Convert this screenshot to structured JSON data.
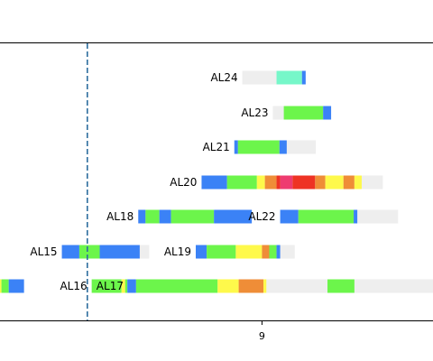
{
  "chart_data": {
    "type": "timeline",
    "title": "",
    "xlabel": "",
    "ylabel": "",
    "xlim": [
      5.4,
      11.35
    ],
    "x_ticks": [
      9
    ],
    "x_tick_labels": [
      "9"
    ],
    "reference_line": {
      "x": 6.6,
      "style": "dashed",
      "color": "#2e6e9e"
    },
    "grid": false,
    "legend": "none",
    "colors": {
      "track": "#eeeeee",
      "blue": "#3b82f6",
      "green": "#6cf54b",
      "yellow": "#fef94b",
      "orange": "#ef8d37",
      "red": "#ee3324",
      "pink": "#ee3b70",
      "teal": "#76f7c9"
    },
    "lanes": [
      {
        "label": "AL24",
        "row": 1,
        "track": [
          8.73,
          9.6
        ],
        "segments": [
          {
            "start": 9.2,
            "end": 9.55,
            "color": "teal"
          },
          {
            "start": 9.55,
            "end": 9.6,
            "color": "blue"
          }
        ]
      },
      {
        "label": "AL23",
        "row": 2,
        "track": [
          9.15,
          9.95
        ],
        "segments": [
          {
            "start": 9.3,
            "end": 9.84,
            "color": "green"
          },
          {
            "start": 9.84,
            "end": 9.95,
            "color": "blue"
          }
        ]
      },
      {
        "label": "AL21",
        "row": 3,
        "track": [
          8.62,
          9.74
        ],
        "segments": [
          {
            "start": 8.62,
            "end": 8.67,
            "color": "blue"
          },
          {
            "start": 8.67,
            "end": 9.24,
            "color": "green"
          },
          {
            "start": 9.24,
            "end": 9.34,
            "color": "blue"
          }
        ]
      },
      {
        "label": "AL20",
        "row": 4,
        "track": [
          8.17,
          10.66
        ],
        "segments": [
          {
            "start": 8.17,
            "end": 8.52,
            "color": "blue"
          },
          {
            "start": 8.52,
            "end": 8.93,
            "color": "green"
          },
          {
            "start": 8.93,
            "end": 9.04,
            "color": "yellow"
          },
          {
            "start": 9.04,
            "end": 9.2,
            "color": "orange"
          },
          {
            "start": 9.2,
            "end": 9.25,
            "color": "red"
          },
          {
            "start": 9.25,
            "end": 9.42,
            "color": "pink"
          },
          {
            "start": 9.42,
            "end": 9.73,
            "color": "red"
          },
          {
            "start": 9.73,
            "end": 9.87,
            "color": "orange"
          },
          {
            "start": 9.87,
            "end": 10.12,
            "color": "yellow"
          },
          {
            "start": 10.12,
            "end": 10.27,
            "color": "orange"
          },
          {
            "start": 10.27,
            "end": 10.37,
            "color": "yellow"
          }
        ]
      },
      {
        "label": "AL18",
        "row": 5,
        "track": [
          7.3,
          8.86
        ],
        "segments": [
          {
            "start": 7.3,
            "end": 7.4,
            "color": "blue"
          },
          {
            "start": 7.4,
            "end": 7.59,
            "color": "green"
          },
          {
            "start": 7.59,
            "end": 7.75,
            "color": "blue"
          },
          {
            "start": 7.75,
            "end": 8.34,
            "color": "green"
          },
          {
            "start": 8.34,
            "end": 8.86,
            "color": "blue"
          }
        ]
      },
      {
        "label": "AL22",
        "row": 5,
        "track": [
          9.25,
          10.87
        ],
        "segments": [
          {
            "start": 9.25,
            "end": 9.5,
            "color": "blue"
          },
          {
            "start": 9.5,
            "end": 10.26,
            "color": "green"
          },
          {
            "start": 10.26,
            "end": 10.31,
            "color": "blue"
          }
        ]
      },
      {
        "label": "AL15",
        "row": 6,
        "track": [
          6.25,
          7.45
        ],
        "segments": [
          {
            "start": 6.25,
            "end": 6.49,
            "color": "blue"
          },
          {
            "start": 6.49,
            "end": 6.77,
            "color": "green"
          },
          {
            "start": 6.77,
            "end": 7.32,
            "color": "blue"
          }
        ]
      },
      {
        "label": "AL19",
        "row": 6,
        "track": [
          8.09,
          9.45
        ],
        "segments": [
          {
            "start": 8.09,
            "end": 8.24,
            "color": "blue"
          },
          {
            "start": 8.24,
            "end": 8.64,
            "color": "green"
          },
          {
            "start": 8.64,
            "end": 9.0,
            "color": "yellow"
          },
          {
            "start": 9.0,
            "end": 9.1,
            "color": "orange"
          },
          {
            "start": 9.1,
            "end": 9.2,
            "color": "green"
          },
          {
            "start": 9.2,
            "end": 9.25,
            "color": "blue"
          }
        ]
      },
      {
        "label": "AL16",
        "row": 7,
        "track": [
          6.66,
          7.18
        ],
        "segments": [
          {
            "start": 6.66,
            "end": 7.07,
            "color": "green"
          },
          {
            "start": 7.07,
            "end": 7.12,
            "color": "yellow"
          },
          {
            "start": 7.12,
            "end": 7.15,
            "color": "green"
          },
          {
            "start": 7.15,
            "end": 7.18,
            "color": "blue"
          }
        ]
      },
      {
        "label": "",
        "row": 7,
        "track": [
          5.4,
          5.73
        ],
        "segments": [
          {
            "start": 5.4,
            "end": 5.42,
            "color": "yellow"
          },
          {
            "start": 5.42,
            "end": 5.52,
            "color": "green"
          },
          {
            "start": 5.52,
            "end": 5.73,
            "color": "blue"
          }
        ]
      },
      {
        "label": "AL17",
        "row": 7,
        "track": [
          7.16,
          11.35
        ],
        "segments": [
          {
            "start": 7.16,
            "end": 7.27,
            "color": "blue"
          },
          {
            "start": 7.27,
            "end": 8.39,
            "color": "green"
          },
          {
            "start": 8.39,
            "end": 8.68,
            "color": "yellow"
          },
          {
            "start": 8.68,
            "end": 9.02,
            "color": "orange"
          },
          {
            "start": 9.02,
            "end": 9.06,
            "color": "yellow"
          },
          {
            "start": 9.9,
            "end": 10.27,
            "color": "green"
          }
        ]
      }
    ]
  }
}
